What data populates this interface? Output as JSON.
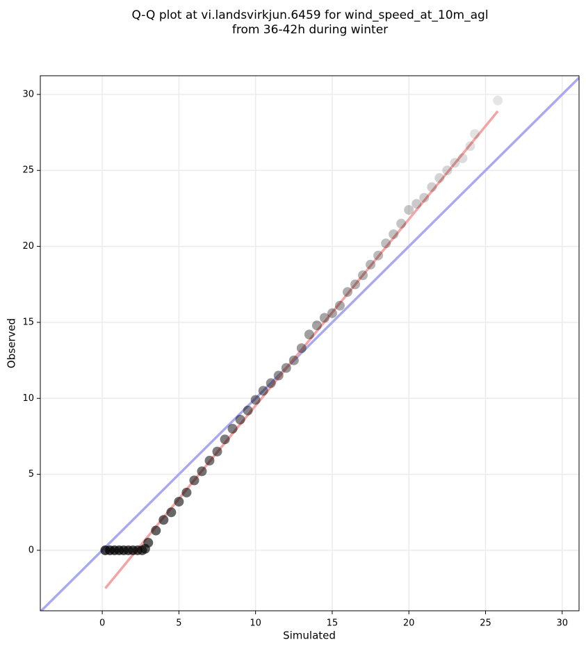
{
  "chart_data": {
    "type": "scatter",
    "title": [
      "Q-Q plot at vi.landsvirkjun.6459 for wind_speed_at_10m_agl",
      "from 36-42h during winter"
    ],
    "xlabel": "Simulated",
    "ylabel": "Observed",
    "xlim": [
      -4.04,
      31.1
    ],
    "ylim": [
      -3.98,
      31.23
    ],
    "xticks": [
      0,
      5,
      10,
      15,
      20,
      25,
      30
    ],
    "yticks": [
      0,
      5,
      10,
      15,
      20,
      25,
      30
    ],
    "grid": true,
    "color": "#000000",
    "x": [
      0.2,
      0.5,
      0.8,
      1.1,
      1.4,
      1.7,
      2.0,
      2.3,
      2.6,
      2.8,
      3.0,
      3.5,
      4.0,
      4.5,
      5.0,
      5.5,
      6.0,
      6.5,
      7.0,
      7.5,
      8.0,
      8.5,
      9.0,
      9.5,
      10.0,
      10.5,
      11.0,
      11.5,
      12.0,
      12.5,
      13.0,
      13.5,
      14.0,
      14.5,
      15.0,
      15.5,
      16.0,
      16.5,
      17.0,
      17.5,
      18.0,
      18.5,
      19.0,
      19.5,
      20.0,
      20.5,
      21.0,
      21.5,
      22.0,
      22.5,
      23.0,
      23.5,
      24.0,
      24.3,
      25.8
    ],
    "y": [
      0,
      0,
      0,
      0,
      0,
      0,
      0,
      0,
      0,
      0.1,
      0.5,
      1.3,
      2.0,
      2.5,
      3.2,
      3.8,
      4.6,
      5.2,
      5.9,
      6.5,
      7.3,
      8.0,
      8.6,
      9.2,
      9.9,
      10.5,
      11.0,
      11.5,
      12.0,
      12.5,
      13.3,
      14.2,
      14.8,
      15.3,
      15.6,
      16.1,
      17.0,
      17.5,
      18.1,
      18.8,
      19.4,
      20.2,
      20.8,
      21.5,
      22.4,
      22.8,
      23.2,
      23.9,
      24.5,
      25.0,
      25.5,
      25.8,
      26.6,
      27.4,
      29.6
    ],
    "lines": [
      {
        "color": "#a9a9f0",
        "x": [
          -4.04,
          31.1
        ],
        "y": [
          -4.04,
          31.1
        ]
      },
      {
        "color": "#f4a4a4",
        "x": [
          0.2,
          25.8
        ],
        "y": [
          -2.5,
          28.9
        ]
      }
    ]
  }
}
